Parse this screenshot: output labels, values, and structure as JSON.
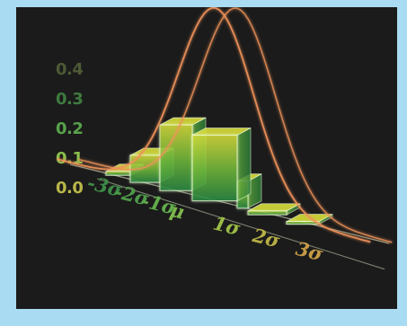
{
  "chart_data": {
    "type": "bar",
    "categories": [
      "-3σ",
      "-2σ",
      "-1σ",
      "μ",
      "1σ",
      "2σ",
      "3σ"
    ],
    "values": [
      0.02,
      0.14,
      0.34,
      0.34,
      0.14,
      0.02,
      0.004
    ],
    "overlay_curve": {
      "type": "normal-density",
      "mean": 0,
      "sd": 1,
      "peak": 0.4
    },
    "yticks": [
      "0.4",
      "0.3",
      "0.2",
      "0.1",
      "0.0"
    ],
    "ylim": [
      0,
      0.4
    ],
    "title": "",
    "xlabel": "",
    "ylabel": "",
    "grid": false,
    "colors": {
      "bar_top": "#d8df3a",
      "bar_mid": "#6fb83a",
      "bar_bottom": "#2a8a44",
      "edge": "#f0ffd8",
      "curve": "#f0935a",
      "ytick_colors": [
        "#4d5a36",
        "#3f7a3f",
        "#57a24a",
        "#8ac04c",
        "#b9b64a"
      ],
      "xtick_colors": [
        "#3d8a46",
        "#4e9a49",
        "#5fab4b",
        "#7db74b",
        "#9aba46",
        "#b6ae45",
        "#c59a45"
      ]
    }
  }
}
